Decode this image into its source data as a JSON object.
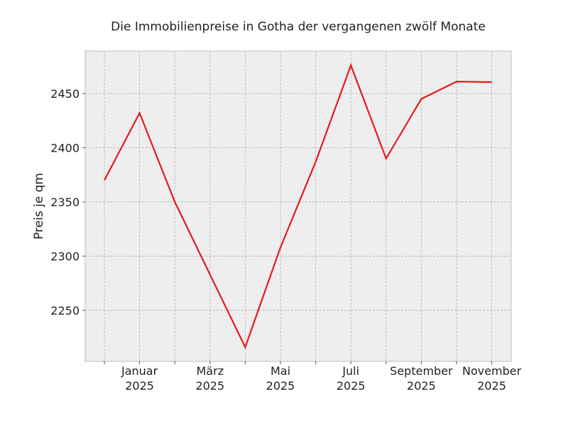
{
  "chart_data": {
    "type": "line",
    "title": "Die Immobilienpreise in Gotha der vergangenen zwölf Monate",
    "ylabel": "Preis je qm",
    "categories": [
      null,
      "Januar 2025",
      null,
      "März 2025",
      null,
      "Mai 2025",
      null,
      "Juli 2025",
      null,
      "September 2025",
      null,
      "November 2025"
    ],
    "values": [
      2370,
      2432,
      2350,
      2283,
      2216,
      2308,
      2387,
      2476,
      2390,
      2445,
      2461,
      2460.5
    ],
    "color": "#e41a1c",
    "ylim": [
      2202.9,
      2489.2
    ],
    "yticks": [
      2250,
      2300,
      2350,
      2400,
      2450
    ],
    "grid": true
  }
}
